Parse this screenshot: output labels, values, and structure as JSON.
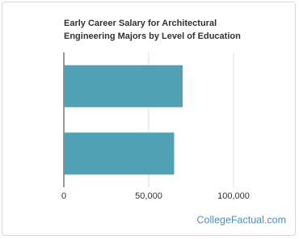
{
  "chart_data": {
    "type": "barh",
    "title": "Early Career Salary for Architectural Engineering Majors by Level of Education",
    "categories": [
      null,
      null
    ],
    "values": [
      70000,
      65000
    ],
    "color": "#4fa1b3",
    "xlim": [
      0,
      130000
    ],
    "xticks": [
      0,
      {
        "value": 50000,
        "label": "50,000"
      },
      {
        "value": 100000,
        "label": "100,000"
      }
    ],
    "grid": true,
    "watermark": "CollegeFactual.com"
  }
}
